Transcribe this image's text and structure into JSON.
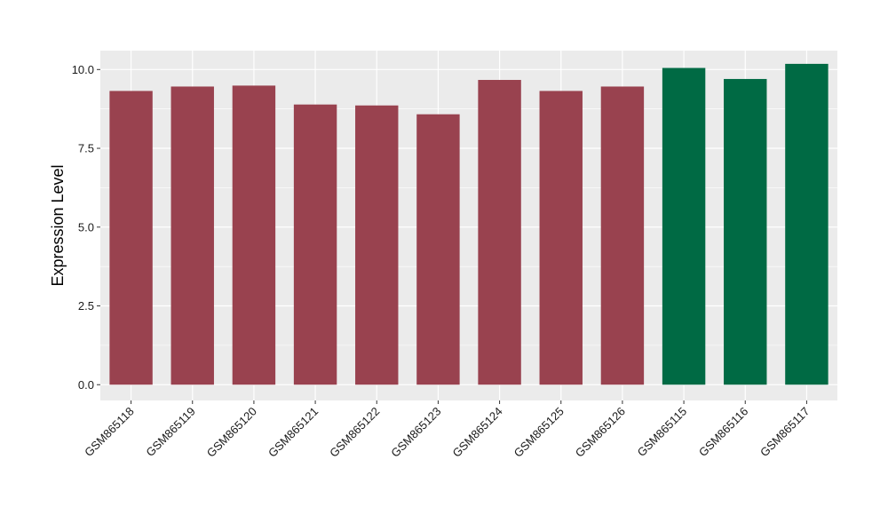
{
  "chart_data": {
    "type": "bar",
    "title": "",
    "xlabel": "",
    "ylabel": "Expression Level",
    "ylim": [
      -0.5,
      10.6
    ],
    "yticks": [
      0.0,
      2.5,
      5.0,
      7.5,
      10.0
    ],
    "ytick_labels": [
      "0.0",
      "2.5",
      "5.0",
      "7.5",
      "10.0"
    ],
    "grid": true,
    "legend": "none",
    "categories": [
      "GSM865118",
      "GSM865119",
      "GSM865120",
      "GSM865121",
      "GSM865122",
      "GSM865123",
      "GSM865124",
      "GSM865125",
      "GSM865126",
      "GSM865115",
      "GSM865116",
      "GSM865117"
    ],
    "values": [
      9.32,
      9.46,
      9.49,
      8.89,
      8.86,
      8.58,
      9.67,
      9.32,
      9.46,
      10.05,
      9.7,
      10.18
    ],
    "colors": [
      "#99424f",
      "#99424f",
      "#99424f",
      "#99424f",
      "#99424f",
      "#99424f",
      "#99424f",
      "#99424f",
      "#99424f",
      "#006a44",
      "#006a44",
      "#006a44"
    ],
    "panel_background": "#ebebeb",
    "grid_color": "#ffffff"
  }
}
